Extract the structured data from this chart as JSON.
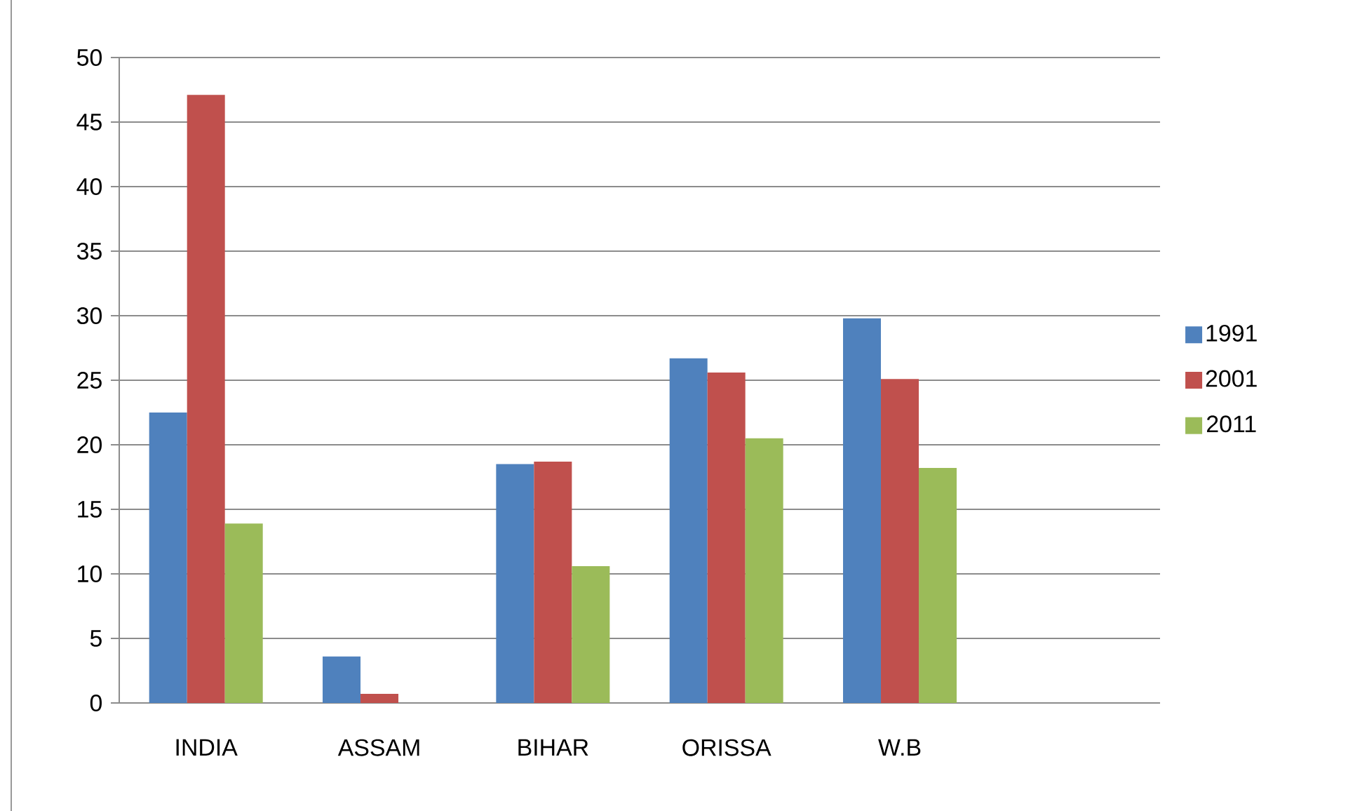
{
  "chart_data": {
    "type": "bar",
    "categories": [
      "INDIA",
      "ASSAM",
      "BIHAR",
      "ORISSA",
      "W.B",
      null
    ],
    "series": [
      {
        "name": "1991",
        "color": "#4f81bd",
        "values": [
          22.5,
          3.6,
          18.5,
          26.7,
          29.8,
          null
        ]
      },
      {
        "name": "2001",
        "color": "#c0504d",
        "values": [
          47.1,
          0.7,
          18.7,
          25.6,
          25.1,
          null
        ]
      },
      {
        "name": "2011",
        "color": "#9bbb59",
        "values": [
          13.9,
          0,
          10.6,
          20.5,
          18.2,
          null
        ]
      }
    ],
    "ylim": [
      0,
      50
    ],
    "yticks": [
      0,
      5,
      10,
      15,
      20,
      25,
      30,
      35,
      40,
      45,
      50
    ],
    "grid": "y",
    "legend": "right"
  }
}
